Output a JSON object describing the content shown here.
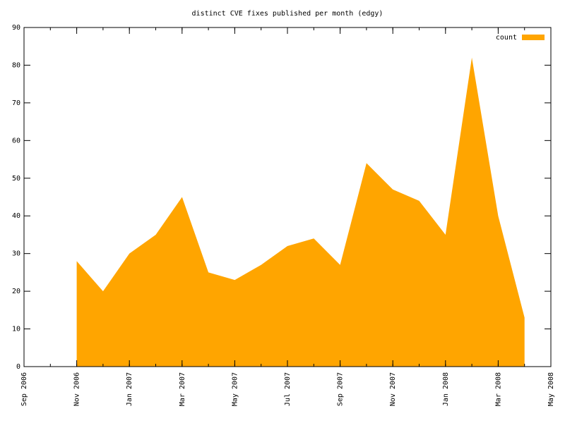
{
  "chart_data": {
    "type": "area",
    "title": "distinct CVE fixes published per month (edgy)",
    "x": [
      "2006-11",
      "2006-12",
      "2007-01",
      "2007-02",
      "2007-03",
      "2007-04",
      "2007-05",
      "2007-06",
      "2007-07",
      "2007-08",
      "2007-09",
      "2007-10",
      "2007-11",
      "2007-12",
      "2008-01",
      "2008-02",
      "2008-03",
      "2008-04"
    ],
    "series": [
      {
        "name": "count",
        "color": "#ffa500",
        "values": [
          28,
          20,
          30,
          35,
          45,
          25,
          23,
          27,
          32,
          34,
          27,
          54,
          47,
          44,
          35,
          82,
          40,
          13
        ]
      }
    ],
    "xlim": [
      "2006-09",
      "2008-05"
    ],
    "xticks": [
      {
        "value": "2006-09",
        "label": "Sep 2006"
      },
      {
        "value": "2006-11",
        "label": "Nov 2006"
      },
      {
        "value": "2007-01",
        "label": "Jan 2007"
      },
      {
        "value": "2007-03",
        "label": "Mar 2007"
      },
      {
        "value": "2007-05",
        "label": "May 2007"
      },
      {
        "value": "2007-07",
        "label": "Jul 2007"
      },
      {
        "value": "2007-09",
        "label": "Sep 2007"
      },
      {
        "value": "2007-11",
        "label": "Nov 2007"
      },
      {
        "value": "2008-01",
        "label": "Jan 2008"
      },
      {
        "value": "2008-03",
        "label": "Mar 2008"
      },
      {
        "value": "2008-05",
        "label": "May 2008"
      }
    ],
    "ylim": [
      0,
      90
    ],
    "yticks": [
      0,
      10,
      20,
      30,
      40,
      50,
      60,
      70,
      80,
      90
    ],
    "legend": "top-right"
  }
}
